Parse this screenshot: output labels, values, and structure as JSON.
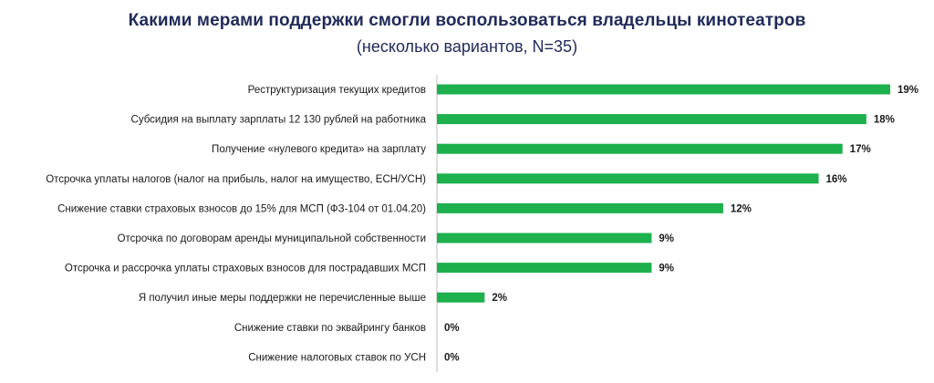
{
  "chart_data": {
    "type": "bar",
    "orientation": "horizontal",
    "title": "Какими мерами поддержки смогли воспользоваться владельцы кинотеатров",
    "subtitle": "(несколько вариантов, N=35)",
    "categories": [
      "Реструктуризация текущих кредитов",
      "Субсидия на выплату зарплаты 12 130 рублей на работника",
      "Получение «нулевого кредита» на зарплату",
      "Отсрочка уплаты налогов (налог на прибыль, налог на имущество, ЕСН/УСН)",
      "Снижение ставки страховых взносов до 15% для МСП (ФЗ-104 от 01.04.20)",
      "Отсрочка по договорам аренды муниципальной собственности",
      "Отсрочка и рассрочка уплаты страховых взносов для пострадавших МСП",
      "Я получил иные меры поддержки не перечисленные выше",
      "Снижение ставки по эквайрингу банков",
      "Снижение налоговых ставок по УСН"
    ],
    "values": [
      19,
      18,
      17,
      16,
      12,
      9,
      9,
      2,
      0,
      0
    ],
    "value_labels": [
      "19%",
      "18%",
      "17%",
      "16%",
      "12%",
      "9%",
      "9%",
      "2%",
      "0%",
      "0%"
    ],
    "unit": "%",
    "xlim": [
      0,
      19
    ],
    "bar_color": "#1db04c",
    "axis_color": "#bfbfbf",
    "title_color": "#1f2a5a",
    "grid": false,
    "legend": "none"
  }
}
